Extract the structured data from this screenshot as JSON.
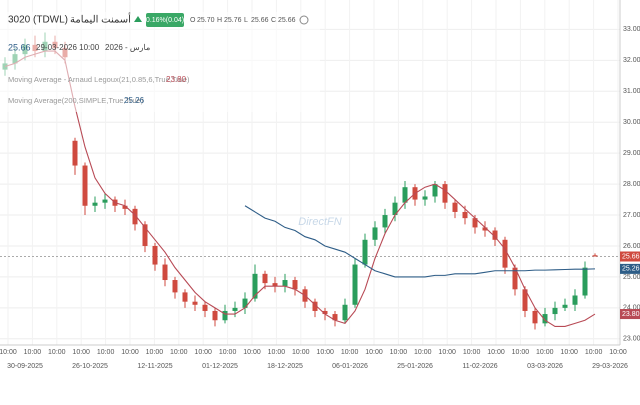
{
  "chart_data": {
    "type": "candlestick",
    "symbol": "3020 (TDWL)",
    "name": "أسمنت اليمامة",
    "change": "0.16%(0.04)",
    "ohlc_header": [
      {
        "label": "O",
        "value": "25.70"
      },
      {
        "label": "H",
        "value": "25.76"
      },
      {
        "label": "L",
        "value": "25.66"
      },
      {
        "label": "C",
        "value": "25.66"
      }
    ],
    "datetime": "29-03-2026 10:00",
    "month": "مارس - 2026",
    "watermark": "DirectFN",
    "last_price": 25.66,
    "last_price_label": "25.66",
    "ylim": [
      22.8,
      33.95
    ],
    "yticks": [
      {
        "value": 23,
        "label": "23.00"
      },
      {
        "value": 24,
        "label": "24.00"
      },
      {
        "value": 25,
        "label": "25.00"
      },
      {
        "value": 26,
        "label": "26.00"
      },
      {
        "value": 27,
        "label": "27.00"
      },
      {
        "value": 28,
        "label": "28.00"
      },
      {
        "value": 29,
        "label": "29.00"
      },
      {
        "value": 30,
        "label": "30.00"
      },
      {
        "value": 31,
        "label": "31.00"
      },
      {
        "value": 32,
        "label": "32.00"
      },
      {
        "value": 33,
        "label": "33.00"
      }
    ],
    "grid": true,
    "time_labels": [
      "10:00",
      "10:00",
      "10:00",
      "10:00",
      "10:00",
      "10:00",
      "10:00",
      "10:00",
      "10:00",
      "10:00",
      "10:00",
      "10:00",
      "10:00",
      "10:00",
      "10:00",
      "10:00",
      "10:00",
      "10:00",
      "10:00",
      "10:00",
      "10:00",
      "10:00",
      "10:00",
      "10:00",
      "10:00",
      "10:00"
    ],
    "date_labels": [
      "30-09-2025",
      "26-10-2025",
      "12-11-2025",
      "01-12-2025",
      "18-12-2025",
      "06-01-2026",
      "25-01-2026",
      "11-02-2026",
      "03-03-2026",
      "29-03-2026"
    ],
    "up_color": "#2a9d5c",
    "down_color": "#cf4a3f",
    "ohlc": [
      [
        31.7,
        32.1,
        31.5,
        31.9
      ],
      [
        31.9,
        32.4,
        31.7,
        32.2
      ],
      [
        32.2,
        32.7,
        32.0,
        32.5
      ],
      [
        32.5,
        32.8,
        32.1,
        32.3
      ],
      [
        32.3,
        32.9,
        32.1,
        32.6
      ],
      [
        32.6,
        32.8,
        32.2,
        32.4
      ],
      [
        32.4,
        32.6,
        31.9,
        32.1
      ],
      [
        29.4,
        29.5,
        28.3,
        28.6
      ],
      [
        28.6,
        28.7,
        27.0,
        27.3
      ],
      [
        27.3,
        27.6,
        27.1,
        27.4
      ],
      [
        27.4,
        27.7,
        27.2,
        27.5
      ],
      [
        27.5,
        27.6,
        27.1,
        27.3
      ],
      [
        27.3,
        27.5,
        27.0,
        27.2
      ],
      [
        27.2,
        27.3,
        26.5,
        26.7
      ],
      [
        26.7,
        26.8,
        25.8,
        26.0
      ],
      [
        26.0,
        26.1,
        25.2,
        25.4
      ],
      [
        25.4,
        25.6,
        24.7,
        24.9
      ],
      [
        24.9,
        25.0,
        24.3,
        24.5
      ],
      [
        24.5,
        24.6,
        24.0,
        24.2
      ],
      [
        24.2,
        24.4,
        23.9,
        24.1
      ],
      [
        24.1,
        24.2,
        23.7,
        23.9
      ],
      [
        23.9,
        24.0,
        23.4,
        23.6
      ],
      [
        23.6,
        24.1,
        23.5,
        23.9
      ],
      [
        23.9,
        24.2,
        23.7,
        24.0
      ],
      [
        24.0,
        24.5,
        23.8,
        24.3
      ],
      [
        24.3,
        25.4,
        24.2,
        25.1
      ],
      [
        25.1,
        25.2,
        24.6,
        24.8
      ],
      [
        24.8,
        25.0,
        24.5,
        24.7
      ],
      [
        24.7,
        25.1,
        24.5,
        24.9
      ],
      [
        24.9,
        25.0,
        24.4,
        24.6
      ],
      [
        24.6,
        24.7,
        24.0,
        24.2
      ],
      [
        24.2,
        24.3,
        23.7,
        23.9
      ],
      [
        23.9,
        24.0,
        23.6,
        23.8
      ],
      [
        23.8,
        23.9,
        23.4,
        23.6
      ],
      [
        23.6,
        24.3,
        23.5,
        24.1
      ],
      [
        24.1,
        25.6,
        24.0,
        25.4
      ],
      [
        25.4,
        26.4,
        25.3,
        26.2
      ],
      [
        26.2,
        26.8,
        26.0,
        26.6
      ],
      [
        26.6,
        27.2,
        26.4,
        27.0
      ],
      [
        27.0,
        27.6,
        26.8,
        27.4
      ],
      [
        27.4,
        28.1,
        27.2,
        27.9
      ],
      [
        27.9,
        28.0,
        27.3,
        27.5
      ],
      [
        27.5,
        27.8,
        27.3,
        27.6
      ],
      [
        27.6,
        28.1,
        27.4,
        28.0
      ],
      [
        28.0,
        28.1,
        27.2,
        27.4
      ],
      [
        27.4,
        27.5,
        26.9,
        27.1
      ],
      [
        27.1,
        27.3,
        26.7,
        26.9
      ],
      [
        26.9,
        27.0,
        26.4,
        26.6
      ],
      [
        26.6,
        26.8,
        26.3,
        26.5
      ],
      [
        26.5,
        26.6,
        26.0,
        26.2
      ],
      [
        26.2,
        26.3,
        25.1,
        25.3
      ],
      [
        25.3,
        25.4,
        24.4,
        24.6
      ],
      [
        24.6,
        24.7,
        23.7,
        23.9
      ],
      [
        23.9,
        24.0,
        23.3,
        23.5
      ],
      [
        23.5,
        24.0,
        23.4,
        23.8
      ],
      [
        23.8,
        24.2,
        23.6,
        24.0
      ],
      [
        24.0,
        24.3,
        23.9,
        24.1
      ],
      [
        24.1,
        24.6,
        23.9,
        24.4
      ],
      [
        24.4,
        25.5,
        24.3,
        25.3
      ],
      [
        25.7,
        25.76,
        25.66,
        25.66
      ]
    ],
    "series": [
      {
        "name": "Moving Average - Arnaud Legoux(21,0.85,6,True,True)",
        "color": "#b84a55",
        "last_label": "23.80",
        "values": [
          31.8,
          31.9,
          32.1,
          32.2,
          32.3,
          32.3,
          32.0,
          30.5,
          29.2,
          28.2,
          27.7,
          27.4,
          27.3,
          27.0,
          26.6,
          26.2,
          25.8,
          25.3,
          24.9,
          24.5,
          24.2,
          24.0,
          23.8,
          23.8,
          24.0,
          24.4,
          24.7,
          24.7,
          24.7,
          24.6,
          24.4,
          24.1,
          23.8,
          23.6,
          23.5,
          23.9,
          24.6,
          25.6,
          26.4,
          27.0,
          27.4,
          27.7,
          27.9,
          28.0,
          27.8,
          27.5,
          27.2,
          26.9,
          26.6,
          26.3,
          25.9,
          25.3,
          24.6,
          24.0,
          23.6,
          23.4,
          23.4,
          23.5,
          23.6,
          23.8
        ]
      },
      {
        "name": "Moving Average(200,SIMPLE,True,True)",
        "color": "#2e5d87",
        "last_label": "25.26",
        "values": [
          null,
          null,
          null,
          null,
          null,
          null,
          null,
          null,
          null,
          null,
          null,
          null,
          null,
          null,
          null,
          null,
          null,
          null,
          null,
          null,
          null,
          null,
          null,
          null,
          27.3,
          27.1,
          26.9,
          26.8,
          26.6,
          26.5,
          26.3,
          26.2,
          26.0,
          25.9,
          25.8,
          25.6,
          25.4,
          25.2,
          25.1,
          25.0,
          25.0,
          25.0,
          25.0,
          25.05,
          25.05,
          25.1,
          25.1,
          25.1,
          25.15,
          25.2,
          25.2,
          25.2,
          25.2,
          25.22,
          25.22,
          25.23,
          25.24,
          25.25,
          25.25,
          25.26
        ]
      }
    ]
  }
}
